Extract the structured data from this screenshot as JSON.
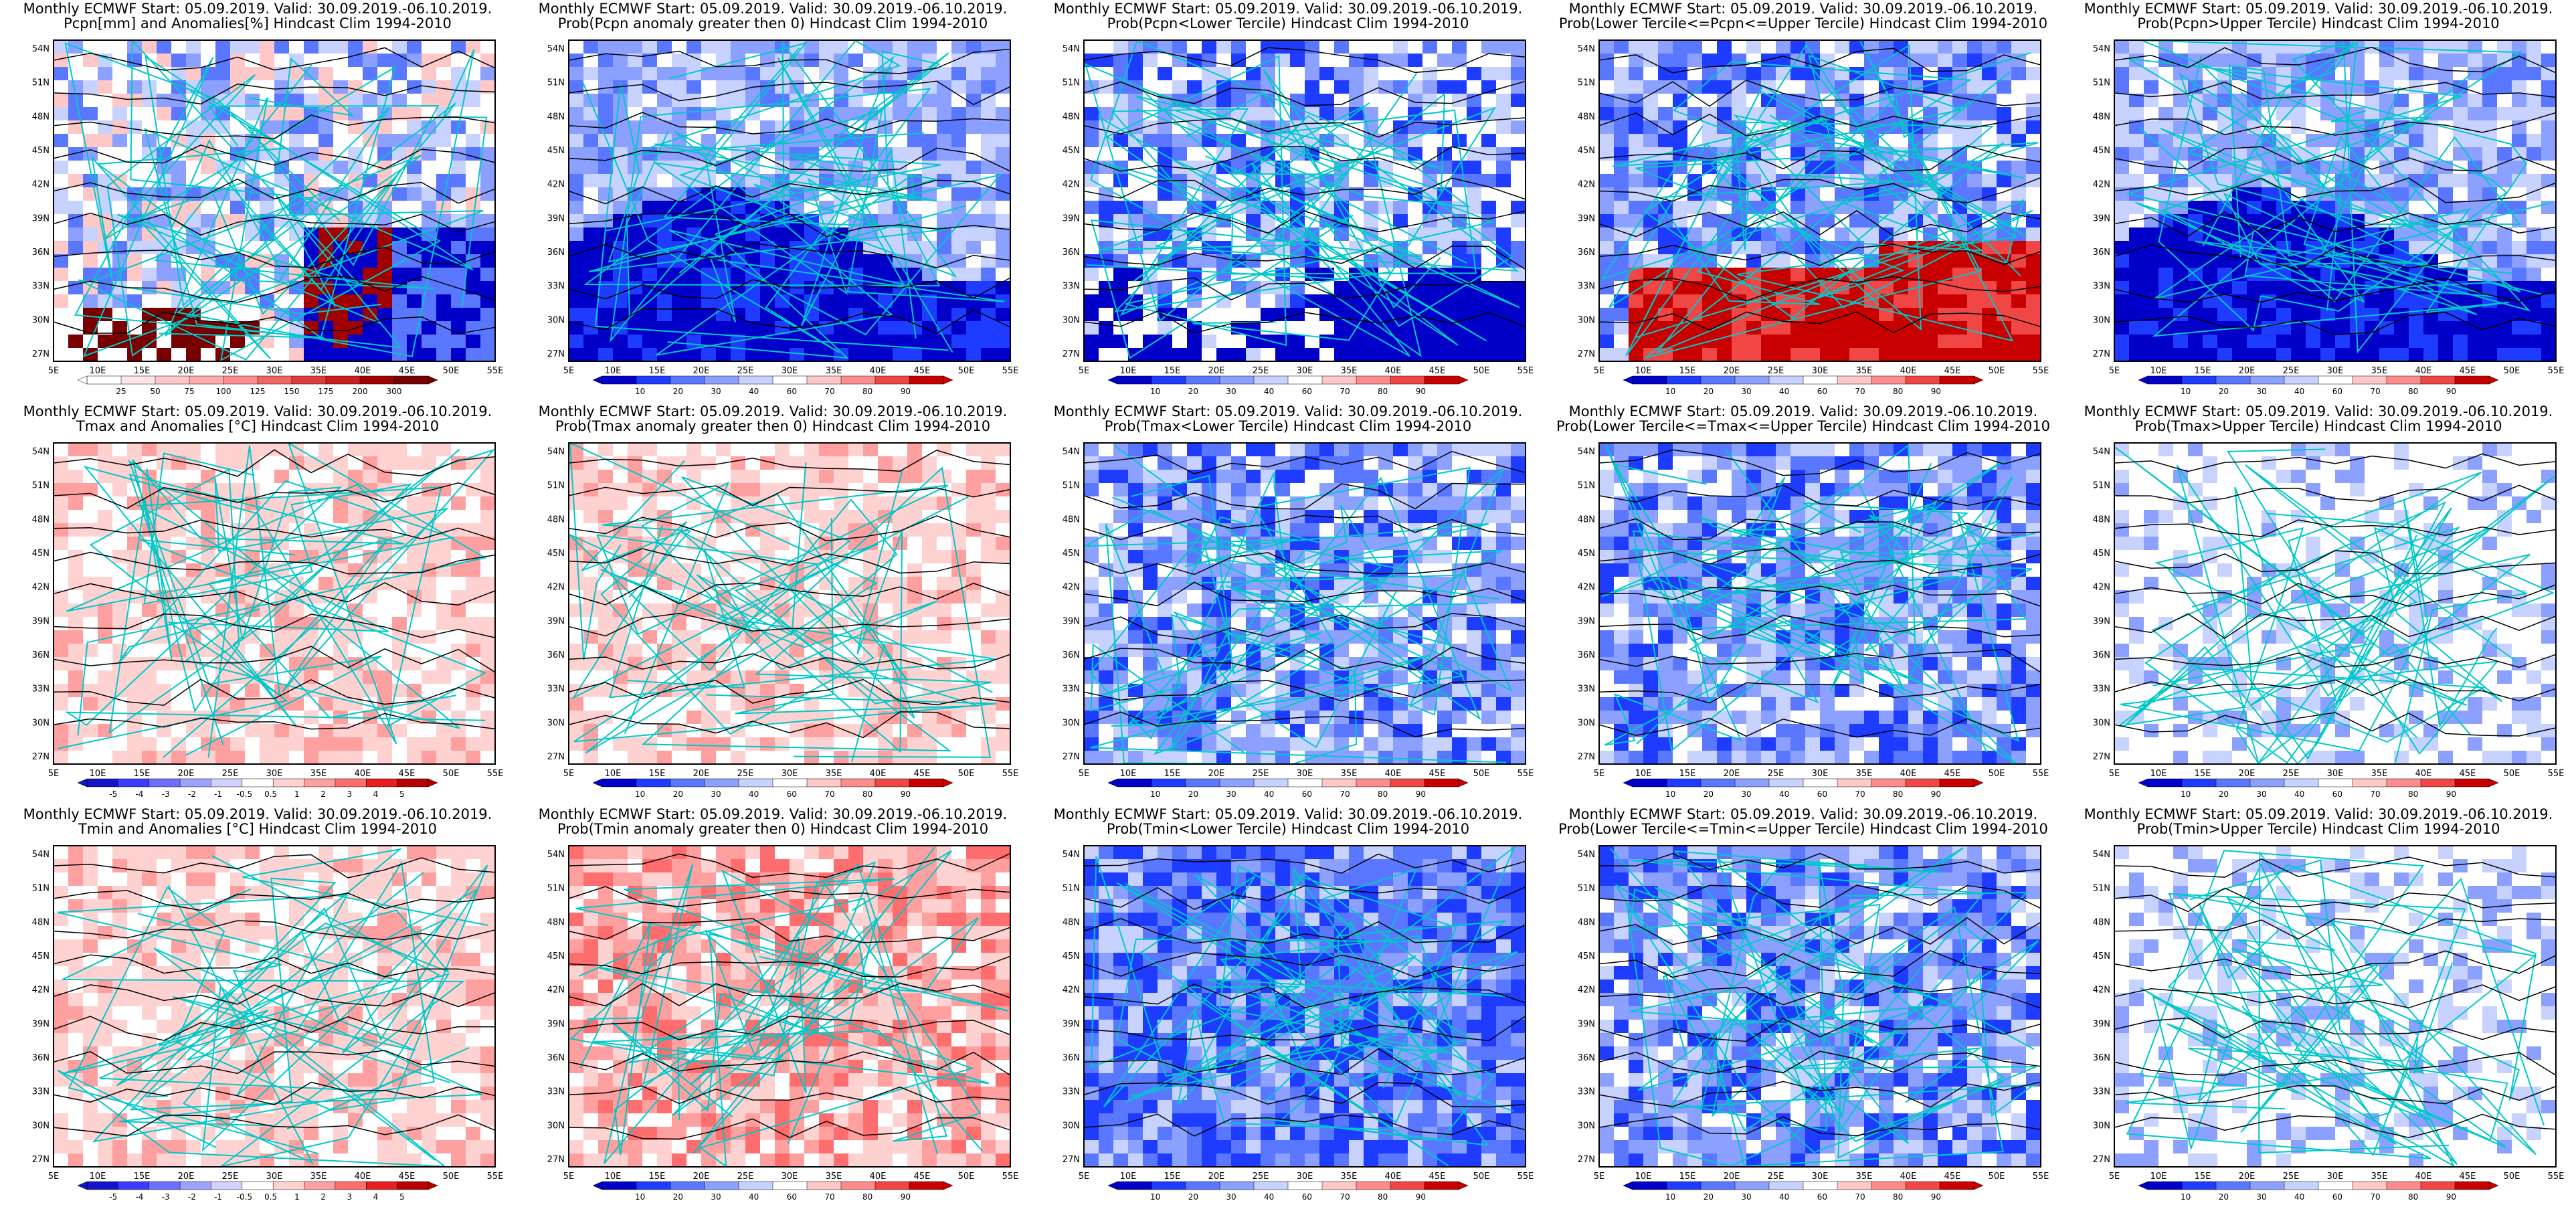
{
  "header_line": "Monthly ECMWF Start: 05.09.2019. Valid: 30.09.2019.-06.10.2019.",
  "lat_ticks": [
    "54N",
    "51N",
    "48N",
    "45N",
    "42N",
    "39N",
    "36N",
    "33N",
    "30N",
    "27N"
  ],
  "lon_ticks": [
    "5E",
    "10E",
    "15E",
    "20E",
    "25E",
    "30E",
    "35E",
    "40E",
    "45E",
    "50E",
    "55E"
  ],
  "colors": {
    "contour": "#000000",
    "coast": "#00c8c8",
    "prob_scale": [
      "#0000c8",
      "#1e3cff",
      "#5a78ff",
      "#8ca0ff",
      "#c8d2ff",
      "#ffffff",
      "#ffc8c8",
      "#ff8c8c",
      "#f04646",
      "#c80000"
    ],
    "anom_scale": [
      "#1414c8",
      "#3c3cff",
      "#6e6eff",
      "#a0a0ff",
      "#d2d2ff",
      "#ffffff",
      "#ffd2d2",
      "#ffa0a0",
      "#ff6e6e",
      "#e61e1e",
      "#b40000"
    ],
    "pcpn_scale": [
      "#ffffff",
      "#ffe6e6",
      "#ffc8c8",
      "#ffaaaa",
      "#ff8c8c",
      "#f06464",
      "#dc3c3c",
      "#c81e1e",
      "#a00000",
      "#780000"
    ]
  },
  "panels": [
    {
      "id": "p-pcpn-anom",
      "line2": "Pcpn[mm] and Anomalies[%] Hindcast Clim 1994-2010",
      "scale": "pcpn",
      "labels": [
        "25",
        "50",
        "75",
        "100",
        "125",
        "150",
        "175",
        "200",
        "300"
      ],
      "style": "pcpn"
    },
    {
      "id": "p-pcpn-gt0",
      "line2": "Prob(Pcpn anomaly greater then 0) Hindcast Clim 1994-2010",
      "scale": "prob",
      "labels": [
        "10",
        "20",
        "30",
        "40",
        "60",
        "70",
        "80",
        "90"
      ],
      "style": "blue-south"
    },
    {
      "id": "p-pcpn-lower",
      "line2": "Prob(Pcpn<Lower Tercile) Hindcast Clim 1994-2010",
      "scale": "prob",
      "labels": [
        "10",
        "20",
        "30",
        "40",
        "60",
        "70",
        "80",
        "90"
      ],
      "style": "blue-mixed"
    },
    {
      "id": "p-pcpn-mid",
      "line2": "Prob(Lower Tercile<=Pcpn<=Upper Tercile) Hindcast Clim 1994-2010",
      "scale": "prob",
      "labels": [
        "10",
        "20",
        "30",
        "40",
        "60",
        "70",
        "80",
        "90"
      ],
      "style": "red-south"
    },
    {
      "id": "p-pcpn-upper",
      "line2": "Prob(Pcpn>Upper Tercile) Hindcast Clim 1994-2010",
      "scale": "prob",
      "labels": [
        "10",
        "20",
        "30",
        "40",
        "60",
        "70",
        "80",
        "90"
      ],
      "style": "blue-south"
    },
    {
      "id": "p-tmax-anom",
      "line2": "Tmax and Anomalies [°C] Hindcast Clim 1994-2010",
      "scale": "anom",
      "labels": [
        "-5",
        "-4",
        "-3",
        "-2",
        "-1",
        "-0.5",
        "0.5",
        "1",
        "2",
        "3",
        "4",
        "5"
      ],
      "style": "pink"
    },
    {
      "id": "p-tmax-gt0",
      "line2": "Prob(Tmax anomaly greater then 0) Hindcast Clim 1994-2010",
      "scale": "prob",
      "labels": [
        "10",
        "20",
        "30",
        "40",
        "60",
        "70",
        "80",
        "90"
      ],
      "style": "pink"
    },
    {
      "id": "p-tmax-lower",
      "line2": "Prob(Tmax<Lower Tercile) Hindcast Clim 1994-2010",
      "scale": "prob",
      "labels": [
        "10",
        "20",
        "30",
        "40",
        "60",
        "70",
        "80",
        "90"
      ],
      "style": "blue-mid"
    },
    {
      "id": "p-tmax-mid",
      "line2": "Prob(Lower Tercile<=Tmax<=Upper Tercile) Hindcast Clim 1994-2010",
      "scale": "prob",
      "labels": [
        "10",
        "20",
        "30",
        "40",
        "60",
        "70",
        "80",
        "90"
      ],
      "style": "blue-mid"
    },
    {
      "id": "p-tmax-upper",
      "line2": "Prob(Tmax>Upper Tercile) Hindcast Clim 1994-2010",
      "scale": "prob",
      "labels": [
        "10",
        "20",
        "30",
        "40",
        "60",
        "70",
        "80",
        "90"
      ],
      "style": "white-light"
    },
    {
      "id": "p-tmin-anom",
      "line2": "Tmin and Anomalies [°C] Hindcast Clim 1994-2010",
      "scale": "anom",
      "labels": [
        "-5",
        "-4",
        "-3",
        "-2",
        "-1",
        "-0.5",
        "0.5",
        "1",
        "2",
        "3",
        "4",
        "5"
      ],
      "style": "pink"
    },
    {
      "id": "p-tmin-gt0",
      "line2": "Prob(Tmin anomaly greater then 0) Hindcast Clim 1994-2010",
      "scale": "prob",
      "labels": [
        "10",
        "20",
        "30",
        "40",
        "60",
        "70",
        "80",
        "90"
      ],
      "style": "pink-strong"
    },
    {
      "id": "p-tmin-lower",
      "line2": "Prob(Tmin<Lower Tercile) Hindcast Clim 1994-2010",
      "scale": "prob",
      "labels": [
        "10",
        "20",
        "30",
        "40",
        "60",
        "70",
        "80",
        "90"
      ],
      "style": "blue-strong"
    },
    {
      "id": "p-tmin-mid",
      "line2": "Prob(Lower Tercile<=Tmin<=Upper Tercile) Hindcast Clim 1994-2010",
      "scale": "prob",
      "labels": [
        "10",
        "20",
        "30",
        "40",
        "60",
        "70",
        "80",
        "90"
      ],
      "style": "blue-mid"
    },
    {
      "id": "p-tmin-upper",
      "line2": "Prob(Tmin>Upper Tercile) Hindcast Clim 1994-2010",
      "scale": "prob",
      "labels": [
        "10",
        "20",
        "30",
        "40",
        "60",
        "70",
        "80",
        "90"
      ],
      "style": "white-light"
    }
  ]
}
